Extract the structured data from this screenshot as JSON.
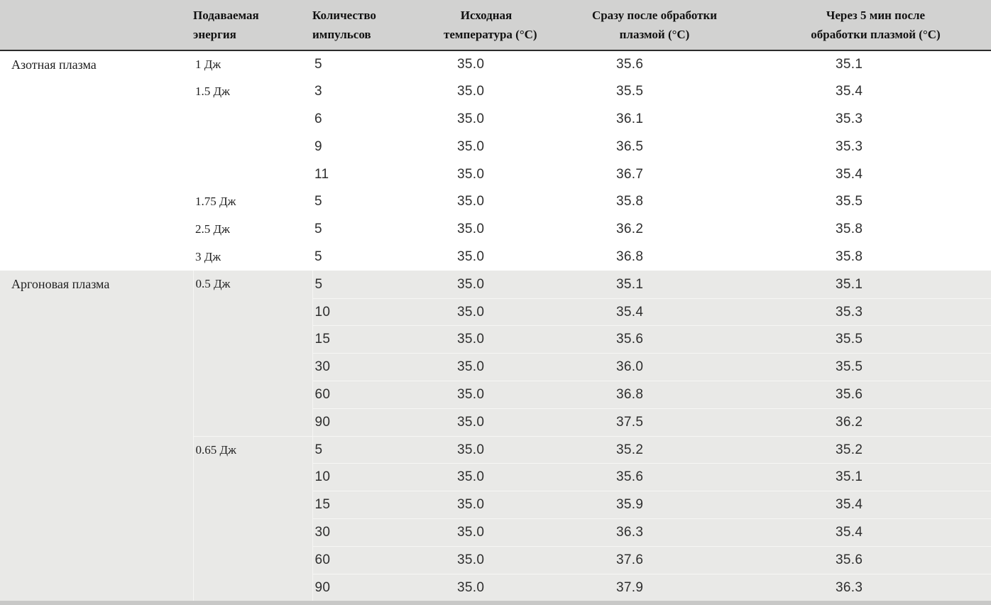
{
  "colors": {
    "header_bg": "#d2d2d1",
    "argon_section_bg": "#e9e9e7",
    "row_divider": "#f6f6f4",
    "header_rule": "#2b2b2b",
    "bottom_rule": "#c8c8c7",
    "text": "#1f1f1f",
    "number_text": "#2e2e2e"
  },
  "table": {
    "headers": [
      "",
      "Подаваемая\nэнергия",
      "Количество\nимпульсов",
      "Исходная\nтемпература (°C)",
      "Сразу после обработки\nплазмой (°C)",
      "Через 5 мин после\nобработки плазмой (°C)"
    ],
    "sections": [
      {
        "plasma": "Азотная плазма",
        "groups": [
          {
            "energy": "1 Дж",
            "rows": [
              [
                "5",
                "35.0",
                "35.6",
                "35.1"
              ]
            ]
          },
          {
            "energy": "1.5 Дж",
            "rows": [
              [
                "3",
                "35.0",
                "35.5",
                "35.4"
              ],
              [
                "6",
                "35.0",
                "36.1",
                "35.3"
              ],
              [
                "9",
                "35.0",
                "36.5",
                "35.3"
              ],
              [
                "11",
                "35.0",
                "36.7",
                "35.4"
              ]
            ]
          },
          {
            "energy": "1.75 Дж",
            "rows": [
              [
                "5",
                "35.0",
                "35.8",
                "35.5"
              ]
            ]
          },
          {
            "energy": "2.5 Дж",
            "rows": [
              [
                "5",
                "35.0",
                "36.2",
                "35.8"
              ]
            ]
          },
          {
            "energy": "3 Дж",
            "rows": [
              [
                "5",
                "35.0",
                "36.8",
                "35.8"
              ]
            ]
          }
        ]
      },
      {
        "plasma": "Аргоновая плазма",
        "groups": [
          {
            "energy": "0.5 Дж",
            "rows": [
              [
                "5",
                "35.0",
                "35.1",
                "35.1"
              ],
              [
                "10",
                "35.0",
                "35.4",
                "35.3"
              ],
              [
                "15",
                "35.0",
                "35.6",
                "35.5"
              ],
              [
                "30",
                "35.0",
                "36.0",
                "35.5"
              ],
              [
                "60",
                "35.0",
                "36.8",
                "35.6"
              ],
              [
                "90",
                "35.0",
                "37.5",
                "36.2"
              ]
            ]
          },
          {
            "energy": "0.65 Дж",
            "rows": [
              [
                "5",
                "35.0",
                "35.2",
                "35.2"
              ],
              [
                "10",
                "35.0",
                "35.6",
                "35.1"
              ],
              [
                "15",
                "35.0",
                "35.9",
                "35.4"
              ],
              [
                "30",
                "35.0",
                "36.3",
                "35.4"
              ],
              [
                "60",
                "35.0",
                "37.6",
                "35.6"
              ],
              [
                "90",
                "35.0",
                "37.9",
                "36.3"
              ]
            ]
          }
        ]
      }
    ]
  }
}
